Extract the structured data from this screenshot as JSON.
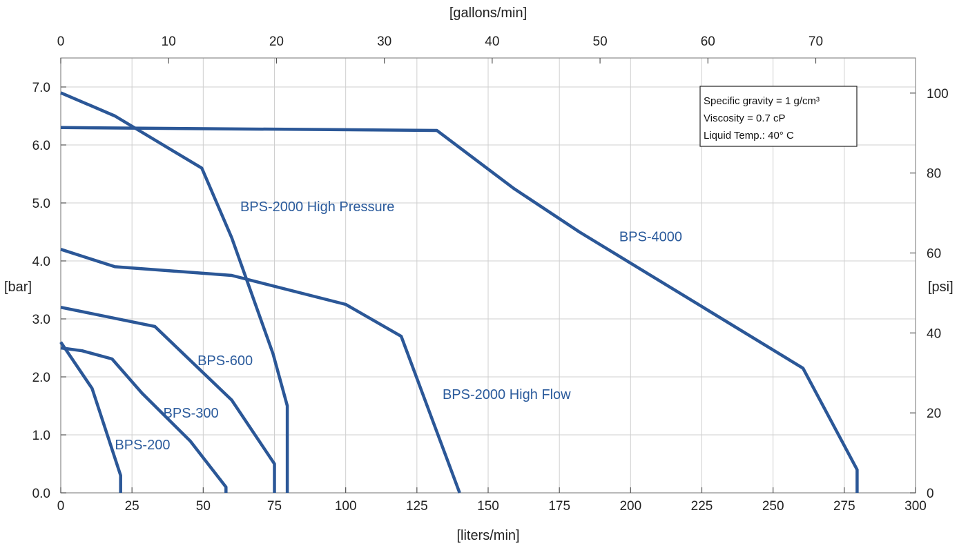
{
  "chart_data": {
    "type": "line",
    "xlabel": "[liters/min]",
    "ylabel": "[bar]",
    "x2label": "[gallons/min]",
    "y2label": "[psi]",
    "xlim": [
      0,
      300
    ],
    "ylim": [
      0,
      7.5
    ],
    "x2lim": [
      0,
      79.25
    ],
    "y2lim": [
      0,
      108.78
    ],
    "xticks": [
      0,
      25,
      50,
      75,
      100,
      125,
      150,
      175,
      200,
      225,
      250,
      275,
      300
    ],
    "xtick_labels": [
      "0",
      "25",
      "50",
      "75",
      "100",
      "125",
      "150",
      "175",
      "200",
      "225",
      "250",
      "275",
      "300"
    ],
    "yticks": [
      0,
      1,
      2,
      3,
      4,
      5,
      6,
      7
    ],
    "ytick_labels": [
      "0.0",
      "1.0",
      "2.0",
      "3.0",
      "4.0",
      "5.0",
      "6.0",
      "7.0"
    ],
    "x2ticks": [
      0,
      10,
      20,
      30,
      40,
      50,
      60,
      70
    ],
    "x2tick_labels": [
      "0",
      "10",
      "20",
      "30",
      "40",
      "50",
      "60",
      "70"
    ],
    "y2ticks": [
      0,
      20,
      40,
      60,
      80,
      100
    ],
    "y2tick_labels": [
      "0",
      "20",
      "40",
      "60",
      "80",
      "100"
    ],
    "grid": true,
    "line_color": "#2b5797",
    "label_color": "#2b5b9c",
    "annotation": {
      "lines": [
        "Specific gravity = 1 g/cm³",
        "Viscosity = 0.7 cP",
        "Liquid Temp.: 40° C"
      ],
      "position": "top-right"
    },
    "series": [
      {
        "name": "BPS-200",
        "x": [
          0,
          11,
          21,
          21
        ],
        "y": [
          2.6,
          1.8,
          0.3,
          0.0
        ],
        "label_at": [
          19,
          0.75
        ]
      },
      {
        "name": "BPS-300",
        "x": [
          0,
          7.5,
          18,
          28.5,
          45.5,
          58,
          58
        ],
        "y": [
          2.5,
          2.45,
          2.31,
          1.72,
          0.89,
          0.1,
          0.0
        ],
        "label_at": [
          36,
          1.3
        ]
      },
      {
        "name": "BPS-600",
        "x": [
          0,
          33,
          60,
          75,
          75
        ],
        "y": [
          3.2,
          2.87,
          1.6,
          0.5,
          0.0
        ],
        "label_at": [
          48,
          2.2
        ]
      },
      {
        "name": "BPS-2000 High Pressure",
        "x": [
          0,
          19,
          49.5,
          60,
          74.5,
          79.5,
          79.5
        ],
        "y": [
          6.9,
          6.5,
          5.6,
          4.4,
          2.4,
          1.5,
          0.0
        ],
        "label_at": [
          63,
          4.86
        ]
      },
      {
        "name": "BPS-2000 High Flow",
        "x": [
          0,
          19,
          60,
          100,
          119.5,
          140
        ],
        "y": [
          4.2,
          3.9,
          3.75,
          3.25,
          2.7,
          0.0
        ],
        "label_at": [
          134,
          1.62
        ]
      },
      {
        "name": "BPS-4000",
        "x": [
          0,
          132,
          159,
          182,
          260.5,
          279.5,
          279.5
        ],
        "y": [
          6.3,
          6.25,
          5.25,
          4.5,
          2.15,
          0.4,
          0.0
        ],
        "label_at": [
          196,
          4.34
        ]
      }
    ]
  }
}
